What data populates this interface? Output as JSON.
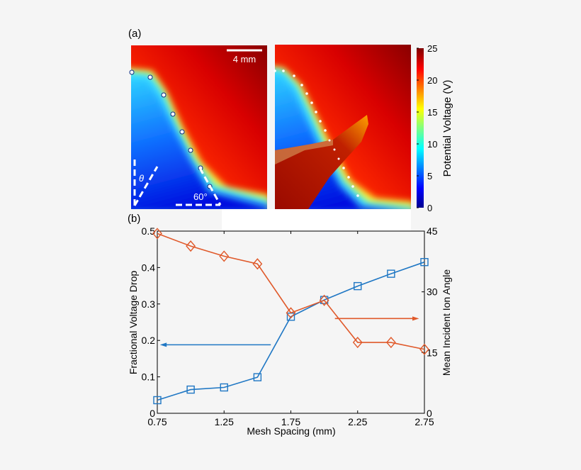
{
  "panel_a": {
    "label": "(a)",
    "scale_bar": "4 mm",
    "angle_label": "60°",
    "theta_label": "θ",
    "colorbar": {
      "label": "Potential Voltage (V)",
      "ticks": [
        "0",
        "5",
        "10",
        "15",
        "20",
        "25"
      ],
      "range": [
        0,
        25
      ],
      "colormap": "jet"
    }
  },
  "panel_b": {
    "label": "(b)"
  },
  "chart_data": {
    "type": "line",
    "xlabel": "Mesh Spacing (mm)",
    "ylabel": "Fractional Voltage Drop",
    "y2label": "Mean Incident Ion Angle",
    "xlim": [
      0.75,
      2.75
    ],
    "ylim": [
      0,
      0.5
    ],
    "y2lim": [
      0,
      45
    ],
    "xticks": [
      "0.75",
      "1.25",
      "1.75",
      "2.25",
      "2.75"
    ],
    "yticks": [
      "0",
      "0.1",
      "0.2",
      "0.3",
      "0.4",
      "0.5"
    ],
    "y2ticks": [
      "0",
      "15",
      "30",
      "45"
    ],
    "grid": false,
    "x": [
      0.75,
      1.0,
      1.25,
      1.5,
      1.75,
      2.0,
      2.25,
      2.5,
      2.75
    ],
    "series": [
      {
        "axis": "left",
        "marker": "square",
        "color": "#1f77c4",
        "values": [
          0.036,
          0.065,
          0.071,
          0.099,
          0.265,
          0.311,
          0.349,
          0.383,
          0.415
        ]
      },
      {
        "axis": "right",
        "marker": "diamond",
        "color": "#e0592a",
        "values": [
          44.4,
          41.3,
          38.8,
          36.9,
          24.8,
          27.9,
          17.5,
          17.5,
          15.8
        ]
      }
    ]
  }
}
